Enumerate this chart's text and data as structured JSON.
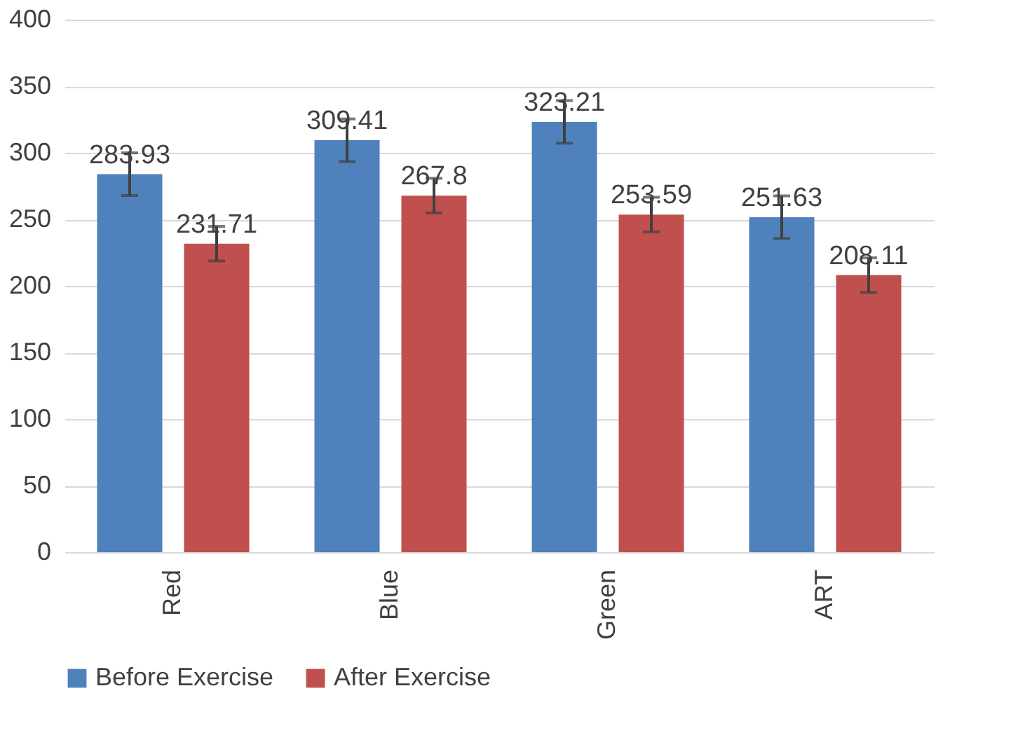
{
  "chart_data": {
    "type": "bar",
    "categories": [
      "Red",
      "Blue",
      "Green",
      "ART"
    ],
    "series": [
      {
        "name": "Before Exercise",
        "color": "#4f81bd",
        "values": [
          283.93,
          309.41,
          323.21,
          251.63
        ],
        "errors": [
          16,
          16,
          16,
          16
        ]
      },
      {
        "name": "After Exercise",
        "color": "#c0504d",
        "values": [
          231.71,
          267.8,
          253.59,
          208.11
        ],
        "errors": [
          13,
          13,
          13,
          13
        ]
      }
    ],
    "data_labels": true,
    "ylim": [
      0,
      400
    ],
    "yticks": [
      0,
      50,
      100,
      150,
      200,
      250,
      300,
      350,
      400
    ],
    "grid": "y",
    "legend": "bottom"
  }
}
